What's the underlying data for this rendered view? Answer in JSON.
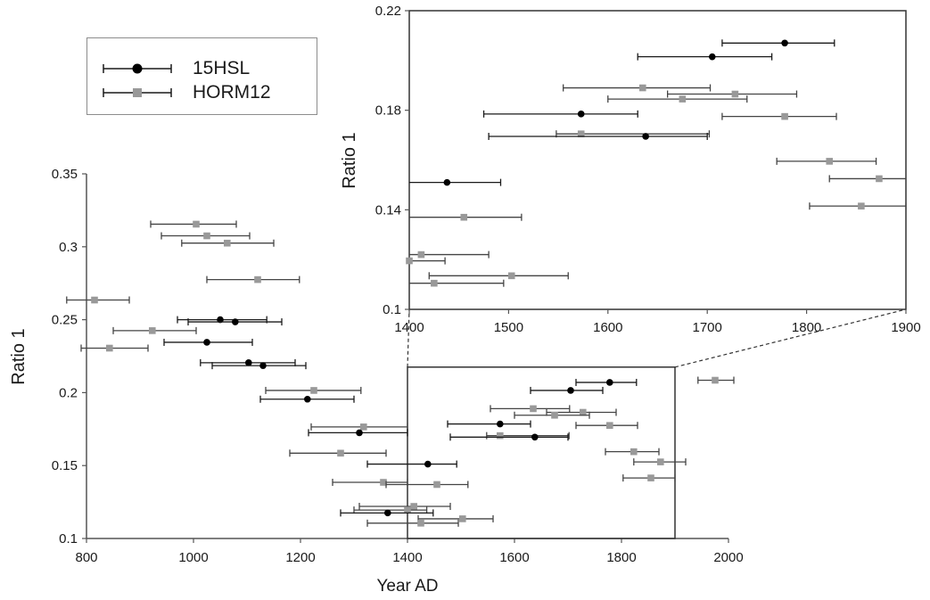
{
  "chart_data": [
    {
      "type": "scatter",
      "xlabel": "Year AD",
      "ylabel": "Ratio 1",
      "xlim": [
        800,
        2000
      ],
      "ylim": [
        0.1,
        0.35
      ],
      "x_ticks": [
        "800",
        "1000",
        "1200",
        "1400",
        "1600",
        "1800",
        "2000"
      ],
      "y_ticks": [
        "0.1",
        "0.15",
        "0.2",
        "0.25",
        "0.3",
        "0.35"
      ],
      "grid": false,
      "legend": "top-left",
      "series": [
        {
          "name": "15HSL",
          "marker": "circle",
          "color": "#000000",
          "points": [
            {
              "x": 1050,
              "y": 0.25,
              "xmin": 970,
              "xmax": 1137
            },
            {
              "x": 1078,
              "y": 0.2485,
              "xmin": 990,
              "xmax": 1165
            },
            {
              "x": 1025,
              "y": 0.2345,
              "xmin": 945,
              "xmax": 1110
            },
            {
              "x": 1103,
              "y": 0.2205,
              "xmin": 1013,
              "xmax": 1190
            },
            {
              "x": 1130,
              "y": 0.2185,
              "xmin": 1035,
              "xmax": 1210
            },
            {
              "x": 1213,
              "y": 0.1955,
              "xmin": 1125,
              "xmax": 1300
            },
            {
              "x": 1310,
              "y": 0.1725,
              "xmin": 1215,
              "xmax": 1400
            },
            {
              "x": 1438,
              "y": 0.151,
              "xmin": 1325,
              "xmax": 1492
            },
            {
              "x": 1363,
              "y": 0.1175,
              "xmin": 1275,
              "xmax": 1448
            },
            {
              "x": 1778,
              "y": 0.207,
              "xmin": 1715,
              "xmax": 1828
            },
            {
              "x": 1705,
              "y": 0.2015,
              "xmin": 1630,
              "xmax": 1765
            },
            {
              "x": 1573,
              "y": 0.1785,
              "xmin": 1475,
              "xmax": 1630
            },
            {
              "x": 1638,
              "y": 0.1695,
              "xmin": 1480,
              "xmax": 1700
            }
          ]
        },
        {
          "name": "HORM12",
          "marker": "square",
          "color": "#999999",
          "points": [
            {
              "x": 815,
              "y": 0.2635,
              "xmin": 763,
              "xmax": 880
            },
            {
              "x": 843,
              "y": 0.2305,
              "xmin": 790,
              "xmax": 915
            },
            {
              "x": 1005,
              "y": 0.3155,
              "xmin": 920,
              "xmax": 1080
            },
            {
              "x": 1025,
              "y": 0.3075,
              "xmin": 940,
              "xmax": 1105
            },
            {
              "x": 1063,
              "y": 0.3025,
              "xmin": 978,
              "xmax": 1150
            },
            {
              "x": 1120,
              "y": 0.2775,
              "xmin": 1025,
              "xmax": 1198
            },
            {
              "x": 923,
              "y": 0.2425,
              "xmin": 850,
              "xmax": 1005
            },
            {
              "x": 1225,
              "y": 0.2015,
              "xmin": 1135,
              "xmax": 1313
            },
            {
              "x": 1318,
              "y": 0.1765,
              "xmin": 1220,
              "xmax": 1400
            },
            {
              "x": 1275,
              "y": 0.1585,
              "xmin": 1180,
              "xmax": 1360
            },
            {
              "x": 1355,
              "y": 0.1385,
              "xmin": 1260,
              "xmax": 1400
            },
            {
              "x": 1455,
              "y": 0.137,
              "xmin": 1360,
              "xmax": 1513
            },
            {
              "x": 1412,
              "y": 0.122,
              "xmin": 1310,
              "xmax": 1480
            },
            {
              "x": 1400,
              "y": 0.1195,
              "xmin": 1300,
              "xmax": 1436
            },
            {
              "x": 1503,
              "y": 0.1135,
              "xmin": 1420,
              "xmax": 1560
            },
            {
              "x": 1425,
              "y": 0.1105,
              "xmin": 1325,
              "xmax": 1495
            },
            {
              "x": 1635,
              "y": 0.189,
              "xmin": 1555,
              "xmax": 1703
            },
            {
              "x": 1728,
              "y": 0.1865,
              "xmin": 1660,
              "xmax": 1790
            },
            {
              "x": 1675,
              "y": 0.1845,
              "xmin": 1600,
              "xmax": 1740
            },
            {
              "x": 1573,
              "y": 0.1705,
              "xmin": 1548,
              "xmax": 1702
            },
            {
              "x": 1778,
              "y": 0.1775,
              "xmin": 1715,
              "xmax": 1830
            },
            {
              "x": 1823,
              "y": 0.1595,
              "xmin": 1770,
              "xmax": 1870
            },
            {
              "x": 1873,
              "y": 0.1525,
              "xmin": 1823,
              "xmax": 1920
            },
            {
              "x": 1855,
              "y": 0.1415,
              "xmin": 1803,
              "xmax": 1900
            },
            {
              "x": 1975,
              "y": 0.2085,
              "xmin": 1943,
              "xmax": 2010
            }
          ]
        }
      ]
    },
    {
      "type": "scatter",
      "xlabel": "",
      "ylabel": "Ratio 1",
      "xlim": [
        1400,
        1900
      ],
      "ylim": [
        0.1,
        0.22
      ],
      "x_ticks": [
        "1400",
        "1500",
        "1600",
        "1700",
        "1800",
        "1900"
      ],
      "y_ticks": [
        "0.1",
        "0.14",
        "0.18",
        "0.22"
      ],
      "grid": false,
      "note": "inset: enlarged view of boxed region 1400-1900"
    }
  ]
}
